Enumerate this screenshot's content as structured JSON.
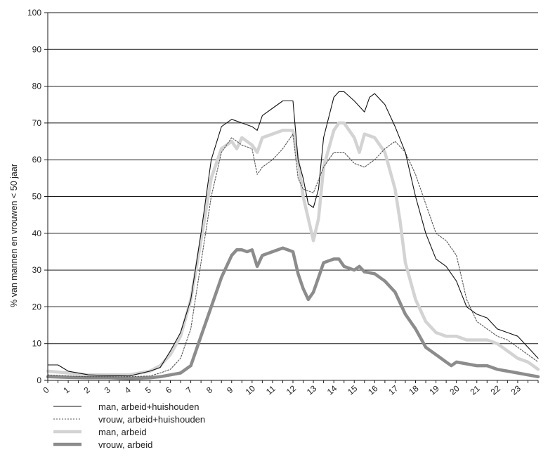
{
  "chart_data": {
    "type": "line",
    "ylabel": "% van mannen en vrouwen < 50 jaar",
    "xlabel": "",
    "ylim": [
      0,
      100
    ],
    "xlim": [
      0,
      24
    ],
    "yticks": [
      0,
      10,
      20,
      30,
      40,
      50,
      60,
      70,
      80,
      90,
      100
    ],
    "xticks": [
      "0",
      "1",
      "2",
      "3",
      "4",
      "5",
      "6",
      "7",
      "8",
      "9",
      "10",
      "11",
      "12",
      "13",
      "14",
      "15",
      "16",
      "17",
      "18",
      "19",
      "20",
      "21",
      "22",
      "23"
    ],
    "grid": "horizontal",
    "legend_position": "bottom-left",
    "series": [
      {
        "name": "man, arbeid+huishouden",
        "color": "#111111",
        "style": "thin-solid",
        "x": [
          0,
          0.5,
          1,
          2,
          3,
          4,
          5,
          5.5,
          6,
          6.5,
          7,
          7.5,
          8,
          8.5,
          9,
          9.5,
          10,
          10.25,
          10.5,
          11,
          11.5,
          12,
          12.25,
          12.5,
          12.75,
          13,
          13.25,
          13.5,
          14,
          14.25,
          14.5,
          15,
          15.5,
          15.75,
          16,
          16.5,
          17,
          17.5,
          18,
          18.5,
          19,
          19.5,
          20,
          20.5,
          21,
          21.5,
          22,
          22.5,
          23,
          23.5,
          24
        ],
        "values": [
          4.2,
          4.2,
          2.5,
          1.5,
          1.3,
          1.2,
          2.5,
          3.5,
          8,
          13,
          22,
          40,
          60,
          69,
          71,
          70,
          69,
          68,
          72,
          74,
          76,
          76,
          60,
          55,
          48,
          47,
          52,
          66,
          77,
          78.5,
          78.5,
          76,
          73,
          77,
          78,
          75,
          69,
          62,
          50,
          40,
          33,
          31,
          27,
          20,
          18,
          17,
          14,
          13,
          12,
          9,
          6
        ]
      },
      {
        "name": "vrouw, arbeid+huishouden",
        "color": "#555555",
        "style": "dotted",
        "x": [
          0,
          1,
          2,
          3,
          4,
          5,
          5.5,
          6,
          6.5,
          7,
          7.5,
          8,
          8.5,
          9,
          9.5,
          10,
          10.25,
          10.5,
          11,
          11.5,
          12,
          12.25,
          12.5,
          13,
          13.5,
          14,
          14.5,
          15,
          15.5,
          16,
          16.5,
          17,
          17.5,
          18,
          18.5,
          19,
          19.5,
          20,
          20.5,
          21,
          21.5,
          22,
          22.5,
          23,
          23.5,
          24
        ],
        "values": [
          1.5,
          1.2,
          1,
          1,
          1,
          1.2,
          2,
          3,
          6,
          14,
          32,
          50,
          62,
          66,
          64,
          63,
          56,
          58,
          60,
          63,
          67,
          55,
          52,
          51,
          58,
          62,
          62,
          59,
          58,
          60,
          63,
          65,
          62,
          56,
          48,
          40,
          38,
          34,
          22,
          16,
          14,
          12,
          11,
          9,
          7,
          5
        ]
      },
      {
        "name": "man, arbeid",
        "color": "#d3d3d3",
        "style": "thick-solid",
        "x": [
          0,
          1,
          2,
          3,
          4,
          5,
          5.5,
          6,
          6.5,
          7,
          7.5,
          8,
          8.5,
          9,
          9.25,
          9.5,
          10,
          10.25,
          10.5,
          11,
          11.5,
          12,
          12.25,
          12.5,
          12.75,
          13,
          13.25,
          13.5,
          14,
          14.25,
          14.5,
          15,
          15.25,
          15.5,
          16,
          16.5,
          17,
          17.25,
          17.5,
          18,
          18.5,
          19,
          19.5,
          20,
          20.5,
          21,
          21.5,
          22,
          22.5,
          23,
          23.5,
          24
        ],
        "values": [
          2.5,
          2,
          1.5,
          1.5,
          1.5,
          2.5,
          4,
          7,
          12,
          22,
          38,
          55,
          63,
          65,
          63,
          66,
          64,
          62,
          66,
          67,
          68,
          68,
          60,
          50,
          44,
          38,
          44,
          58,
          68,
          70,
          70,
          66,
          62,
          67,
          66,
          62,
          52,
          43,
          32,
          22,
          16,
          13,
          12,
          12,
          11,
          11,
          11,
          10,
          8,
          6,
          5,
          3
        ]
      },
      {
        "name": "vrouw, arbeid",
        "color": "#8c8c8c",
        "style": "thick-solid",
        "x": [
          0,
          1,
          2,
          3,
          4,
          5,
          5.5,
          6,
          6.5,
          7,
          7.5,
          8,
          8.5,
          9,
          9.25,
          9.5,
          9.75,
          10,
          10.25,
          10.5,
          11,
          11.5,
          12,
          12.25,
          12.5,
          12.75,
          13,
          13.25,
          13.5,
          14,
          14.25,
          14.5,
          15,
          15.25,
          15.5,
          16,
          16.5,
          17,
          17.5,
          18,
          18.5,
          19,
          19.5,
          19.75,
          20,
          20.5,
          21,
          21.5,
          22,
          22.5,
          23,
          23.5,
          24
        ],
        "values": [
          1,
          0.8,
          0.7,
          0.7,
          0.5,
          0.7,
          1,
          1.5,
          2,
          4,
          12,
          20,
          28,
          34,
          35.5,
          35.5,
          35,
          35.5,
          31,
          34,
          35,
          36,
          35,
          29,
          25,
          22,
          24,
          28,
          32,
          33,
          33,
          31,
          30,
          31,
          29.5,
          29,
          27,
          24,
          18,
          14,
          9,
          7,
          5,
          4,
          5,
          4.5,
          4,
          4,
          3,
          2.5,
          2,
          1.5,
          1
        ]
      }
    ]
  }
}
